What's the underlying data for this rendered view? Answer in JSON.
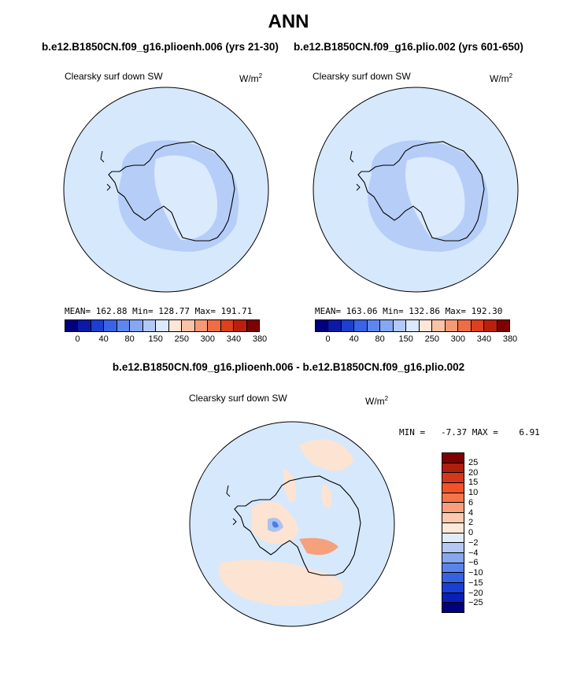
{
  "title": "ANN",
  "left_case": "b.e12.B1850CN.f09_g16.plioenh.006 (yrs 21-30)",
  "right_case": "b.e12.B1850CN.f09_g16.plio.002 (yrs 601-650)",
  "diff_case": "b.e12.B1850CN.f09_g16.plioenh.006 - b.e12.B1850CN.f09_g16.plio.002",
  "panels": [
    {
      "variable": "Clearsky surf down SW",
      "unit": "W/m",
      "unit_sup": "2",
      "stats": "MEAN= 162.88   Min= 128.77   Max= 191.71"
    },
    {
      "variable": "Clearsky surf down SW",
      "unit": "W/m",
      "unit_sup": "2",
      "stats": "MEAN= 163.06   Min= 132.86   Max= 192.30"
    },
    {
      "variable": "Clearsky surf down SW",
      "unit": "W/m",
      "unit_sup": "2",
      "stats": "MIN =   -7.37 MAX =    6.91"
    }
  ],
  "abs_colorbar": {
    "colors": [
      "#00007f",
      "#0a1aa6",
      "#1c3fcf",
      "#3a63e8",
      "#5f86ef",
      "#86a8f3",
      "#b2c8f7",
      "#dce8fb",
      "#fde6d8",
      "#f9c3a5",
      "#f59a75",
      "#ef6d45",
      "#df3f1e",
      "#bb200d",
      "#7f0000"
    ],
    "labels": [
      "0",
      "40",
      "80",
      "150",
      "250",
      "300",
      "340",
      "380"
    ]
  },
  "diff_colorbar": {
    "colors": [
      "#7f0000",
      "#b01e0c",
      "#d6361a",
      "#f2522a",
      "#f57448",
      "#f8a07c",
      "#fbc9ad",
      "#fde8da",
      "#e0ecfb",
      "#b3c8f4",
      "#86a6ef",
      "#5b83ea",
      "#3561e3",
      "#1a3fd8",
      "#0820b6",
      "#00007f"
    ],
    "labels": [
      "25",
      "20",
      "15",
      "10",
      "6",
      "4",
      "2",
      "0",
      "−2",
      "−4",
      "−6",
      "−10",
      "−15",
      "−20",
      "−25"
    ]
  },
  "map_colors": {
    "ocean": "#d6e8fb",
    "continent_band": "#b6cdf8",
    "interior": "#dbeafd",
    "positive": "#fde3d2",
    "positive_strong": "#f6a07c",
    "negative": "#a9c3f3",
    "negative_strong": "#4f7ae8"
  }
}
